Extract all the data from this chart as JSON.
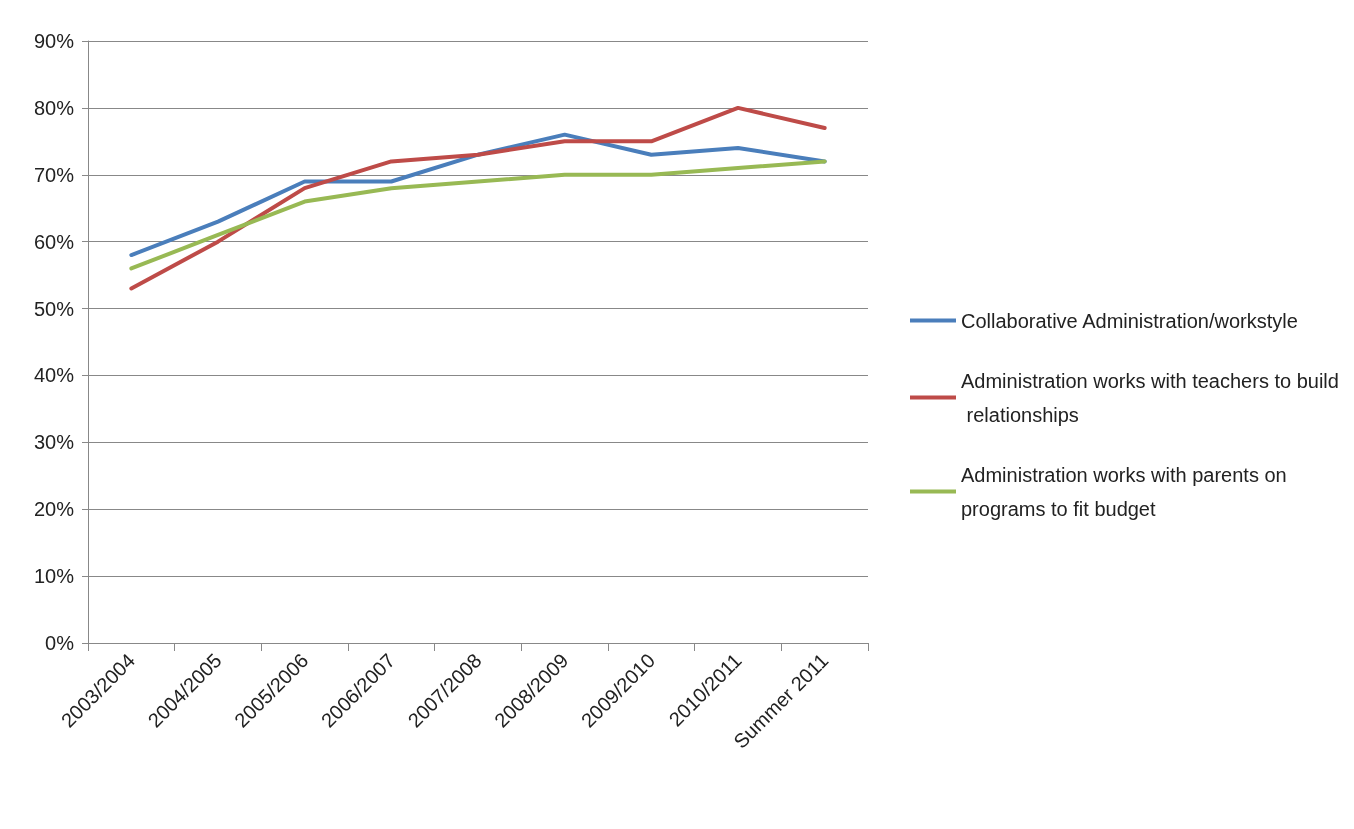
{
  "chart_data": {
    "type": "line",
    "categories": [
      "2003/2004",
      "2004/2005",
      "2005/2006",
      "2006/2007",
      "2007/2008",
      "2008/2009",
      "2009/2010",
      "2010/2011",
      "Summer 2011"
    ],
    "series": [
      {
        "name": "Collaborative Administration/workstyle",
        "color": "#4a7ebb",
        "values": [
          58,
          63,
          69,
          69,
          73,
          76,
          73,
          74,
          72
        ]
      },
      {
        "name": "Administration works with teachers to build relationships",
        "color": "#be4b48",
        "values": [
          53,
          60,
          68,
          72,
          73,
          75,
          75,
          80,
          77
        ]
      },
      {
        "name": "Administration works with parents on programs to fit budget",
        "color": "#98b954",
        "values": [
          56,
          61,
          66,
          68,
          69,
          70,
          70,
          71,
          72
        ]
      }
    ],
    "ylim": [
      0,
      90
    ],
    "yticks": [
      {
        "value": 0,
        "label": "0%"
      },
      {
        "value": 10,
        "label": "10%"
      },
      {
        "value": 20,
        "label": "20%"
      },
      {
        "value": 30,
        "label": "30%"
      },
      {
        "value": 40,
        "label": "40%"
      },
      {
        "value": 50,
        "label": "50%"
      },
      {
        "value": 60,
        "label": "60%"
      },
      {
        "value": 70,
        "label": "70%"
      },
      {
        "value": 80,
        "label": "80%"
      },
      {
        "value": 90,
        "label": "90%"
      }
    ],
    "grid": "y",
    "legend": "right",
    "marker": "none",
    "line_style": "solid"
  }
}
